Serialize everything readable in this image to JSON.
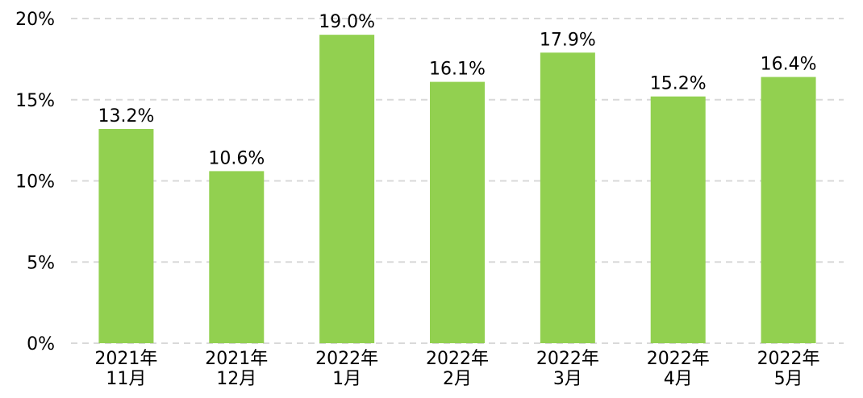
{
  "chart_data": {
    "type": "bar",
    "categories": [
      [
        "2021年",
        "11月"
      ],
      [
        "2021年",
        "12月"
      ],
      [
        "2022年",
        "1月"
      ],
      [
        "2022年",
        "2月"
      ],
      [
        "2022年",
        "3月"
      ],
      [
        "2022年",
        "4月"
      ],
      [
        "2022年",
        "5月"
      ]
    ],
    "values": [
      13.2,
      10.6,
      19.0,
      16.1,
      17.9,
      15.2,
      16.4
    ],
    "value_labels": [
      "13.2%",
      "10.6%",
      "19.0%",
      "16.1%",
      "17.9%",
      "15.2%",
      "16.4%"
    ],
    "y_ticks": [
      {
        "value": 0,
        "label": "0%"
      },
      {
        "value": 5,
        "label": "5%"
      },
      {
        "value": 10,
        "label": "10%"
      },
      {
        "value": 15,
        "label": "15%"
      },
      {
        "value": 20,
        "label": "20%"
      }
    ],
    "ylim": [
      0,
      20
    ],
    "grid": true,
    "bar_color": "#92d050",
    "grid_color": "#d9d9d9"
  }
}
